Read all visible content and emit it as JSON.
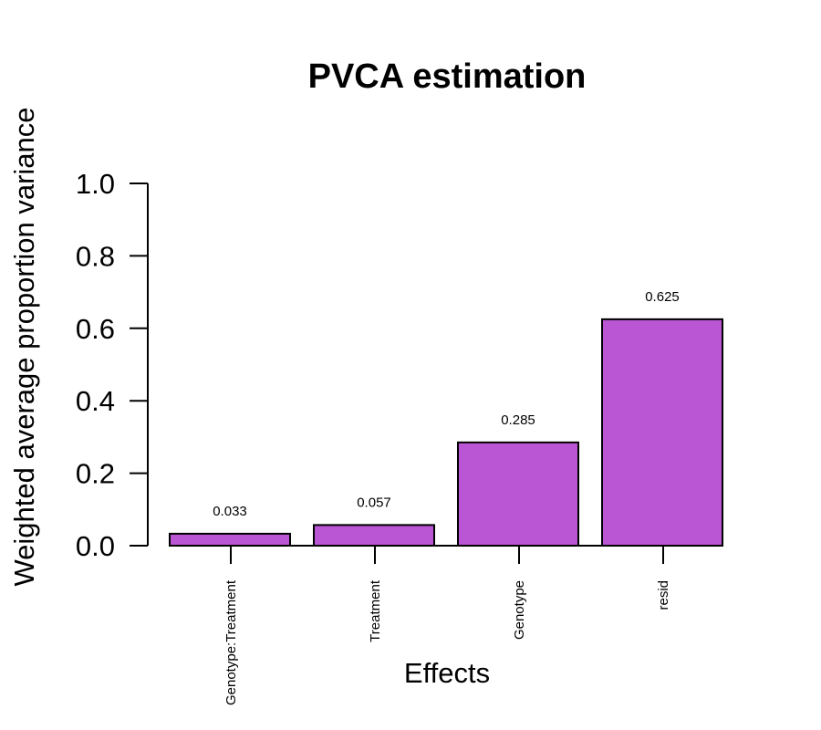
{
  "chart_data": {
    "type": "bar",
    "title": "PVCA estimation",
    "xlabel": "Effects",
    "ylabel": "Weighted average proportion variance",
    "categories": [
      "Genotype:Treatment",
      "Treatment",
      "Genotype",
      "resid"
    ],
    "values": [
      0.033,
      0.057,
      0.285,
      0.625
    ],
    "data_labels": [
      "0.033",
      "0.057",
      "0.285",
      "0.625"
    ],
    "ylim": [
      0,
      1
    ],
    "yticks": [
      0.0,
      0.2,
      0.4,
      0.6,
      0.8,
      1.0
    ],
    "ytick_labels": [
      "0.0",
      "0.2",
      "0.4",
      "0.6",
      "0.8",
      "1.0"
    ],
    "bar_color": "#BA55D3",
    "grid": false,
    "legend": "none"
  }
}
